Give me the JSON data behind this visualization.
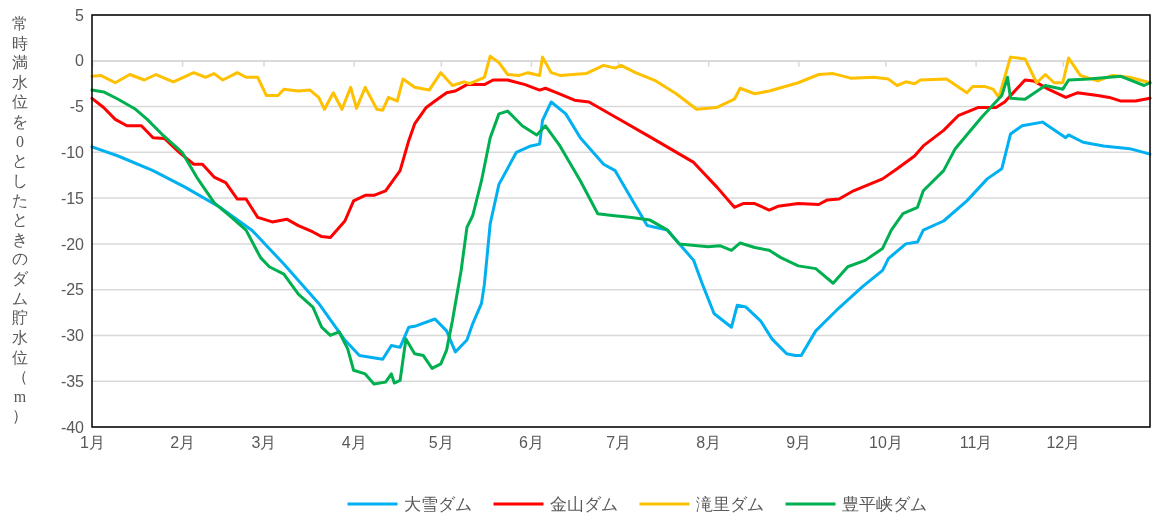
{
  "chart_data": {
    "type": "line",
    "ylabel": "常時満水位を0としたときのダム貯水位（m）",
    "xlim": [
      "--01-01",
      "--12-31"
    ],
    "xticks": [
      {
        "value": "--01-01",
        "label": "1月"
      },
      {
        "value": "--02-01",
        "label": "2月"
      },
      {
        "value": "--03-01",
        "label": "3月"
      },
      {
        "value": "--04-01",
        "label": "4月"
      },
      {
        "value": "--05-01",
        "label": "5月"
      },
      {
        "value": "--06-01",
        "label": "6月"
      },
      {
        "value": "--07-01",
        "label": "7月"
      },
      {
        "value": "--08-01",
        "label": "8月"
      },
      {
        "value": "--09-01",
        "label": "9月"
      },
      {
        "value": "--10-01",
        "label": "10月"
      },
      {
        "value": "--11-01",
        "label": "11月"
      },
      {
        "value": "--12-01",
        "label": "12月"
      }
    ],
    "ylim": [
      -40,
      5
    ],
    "yticks": [
      -40,
      -35,
      -30,
      -25,
      -20,
      -15,
      -10,
      -5,
      0,
      5
    ],
    "grid": "y",
    "legend": "bottom",
    "marker": "none",
    "line_style": "solid",
    "series": [
      {
        "name": "大雪ダム",
        "color": "#00b0f0",
        "x": [
          "--01-01",
          "--01-10",
          "--01-22",
          "--02-02",
          "--02-14",
          "--02-25",
          "--03-08",
          "--03-20",
          "--03-29",
          "--04-03",
          "--04-11",
          "--04-14",
          "--04-17",
          "--04-20",
          "--04-22",
          "--04-29",
          "--05-03",
          "--05-06",
          "--05-10",
          "--05-12",
          "--05-15",
          "--05-16",
          "--05-18",
          "--05-21",
          "--05-27",
          "--06-01",
          "--06-04",
          "--06-05",
          "--06-08",
          "--06-13",
          "--06-18",
          "--06-26",
          "--06-30",
          "--07-06",
          "--07-11",
          "--07-18",
          "--07-27",
          "--07-30",
          "--08-03",
          "--08-09",
          "--08-11",
          "--08-14",
          "--08-19",
          "--08-23",
          "--08-28",
          "--08-31",
          "--09-02",
          "--09-07",
          "--09-14",
          "--09-23",
          "--09-30",
          "--10-02",
          "--10-08",
          "--10-12",
          "--10-14",
          "--10-21",
          "--10-29",
          "--11-05",
          "--11-10",
          "--11-13",
          "--11-17",
          "--11-24",
          "--12-02",
          "--12-03",
          "--12-08",
          "--12-15",
          "--12-24",
          "--12-31"
        ],
        "values": [
          -9.4,
          -10.4,
          -12,
          -13.8,
          -16,
          -18.5,
          -22.2,
          -26.5,
          -30.5,
          -32.2,
          -32.6,
          -31.1,
          -31.3,
          -29.1,
          -29,
          -28.2,
          -29.5,
          -31.8,
          -30.5,
          -28.7,
          -26.5,
          -24.4,
          -17.8,
          -13.5,
          -10,
          -9.3,
          -9.1,
          -6.5,
          -4.5,
          -5.8,
          -8.4,
          -11.3,
          -12,
          -15.3,
          -18,
          -18.5,
          -21.8,
          -24.4,
          -27.6,
          -29.1,
          -26.7,
          -26.9,
          -28.4,
          -30.4,
          -32,
          -32.2,
          -32.2,
          -29.5,
          -27.3,
          -24.7,
          -22.9,
          -21.6,
          -20,
          -19.8,
          -18.5,
          -17.5,
          -15.3,
          -12.9,
          -11.8,
          -8,
          -7.1,
          -6.7,
          -8.4,
          -8.1,
          -8.9,
          -9.3,
          -9.6,
          -10.2
        ]
      },
      {
        "name": "金山ダム",
        "color": "#ff0000",
        "x": [
          "--01-01",
          "--01-05",
          "--01-09",
          "--01-13",
          "--01-18",
          "--01-22",
          "--01-26",
          "--01-31",
          "--02-05",
          "--02-08",
          "--02-12",
          "--02-16",
          "--02-20",
          "--02-23",
          "--02-27",
          "--03-04",
          "--03-09",
          "--03-13",
          "--03-18",
          "--03-21",
          "--03-24",
          "--03-29",
          "--04-01",
          "--04-05",
          "--04-08",
          "--04-12",
          "--04-17",
          "--04-20",
          "--04-22",
          "--04-26",
          "--04-29",
          "--05-03",
          "--05-06",
          "--05-10",
          "--05-16",
          "--05-19",
          "--05-24",
          "--05-30",
          "--06-04",
          "--06-06",
          "--06-10",
          "--06-16",
          "--06-21",
          "--07-02",
          "--07-13",
          "--07-27",
          "--08-04",
          "--08-10",
          "--08-13",
          "--08-17",
          "--08-22",
          "--08-25",
          "--09-01",
          "--09-08",
          "--09-11",
          "--09-15",
          "--09-20",
          "--09-30",
          "--10-05",
          "--10-11",
          "--10-14",
          "--10-21",
          "--10-26",
          "--11-02",
          "--11-08",
          "--11-11",
          "--11-18",
          "--11-21",
          "--11-26",
          "--12-02",
          "--12-06",
          "--12-13",
          "--12-17",
          "--12-21",
          "--12-26",
          "--12-31"
        ],
        "values": [
          -4.1,
          -5.1,
          -6.4,
          -7.1,
          -7.1,
          -8.4,
          -8.5,
          -10,
          -11.3,
          -11.3,
          -12.7,
          -13.3,
          -15.1,
          -15.1,
          -17.1,
          -17.6,
          -17.3,
          -18,
          -18.7,
          -19.2,
          -19.3,
          -17.5,
          -15.3,
          -14.7,
          -14.7,
          -14.2,
          -12,
          -8.7,
          -6.9,
          -5.1,
          -4.4,
          -3.5,
          -3.3,
          -2.6,
          -2.6,
          -2.1,
          -2.1,
          -2.6,
          -3.2,
          -3,
          -3.5,
          -4.3,
          -4.5,
          -6.5,
          -8.5,
          -11.1,
          -13.8,
          -16,
          -15.6,
          -15.6,
          -16.3,
          -15.9,
          -15.6,
          -15.7,
          -15.2,
          -15.1,
          -14.2,
          -12.9,
          -11.8,
          -10.4,
          -9.3,
          -7.6,
          -6,
          -5.1,
          -5.1,
          -4.5,
          -2.1,
          -2.2,
          -3.1,
          -4,
          -3.5,
          -3.8,
          -4,
          -4.4,
          -4.4,
          -4.1
        ]
      },
      {
        "name": "滝里ダム",
        "color": "#ffc000",
        "x": [
          "--01-01",
          "--01-04",
          "--01-09",
          "--01-14",
          "--01-19",
          "--01-23",
          "--01-29",
          "--02-05",
          "--02-09",
          "--02-12",
          "--02-15",
          "--02-20",
          "--02-23",
          "--02-27",
          "--03-02",
          "--03-06",
          "--03-08",
          "--03-13",
          "--03-17",
          "--03-20",
          "--03-22",
          "--03-25",
          "--03-28",
          "--03-31",
          "--04-02",
          "--04-05",
          "--04-09",
          "--04-11",
          "--04-13",
          "--04-16",
          "--04-18",
          "--04-22",
          "--04-27",
          "--05-01",
          "--05-05",
          "--05-09",
          "--05-11",
          "--05-16",
          "--05-18",
          "--05-21",
          "--05-24",
          "--05-28",
          "--05-31",
          "--06-04",
          "--06-05",
          "--06-08",
          "--06-11",
          "--06-20",
          "--06-26",
          "--06-30",
          "--07-02",
          "--07-07",
          "--07-14",
          "--07-21",
          "--07-28",
          "--08-04",
          "--08-10",
          "--08-12",
          "--08-17",
          "--08-22",
          "--09-01",
          "--09-08",
          "--09-13",
          "--09-19",
          "--09-27",
          "--10-02",
          "--10-05",
          "--10-08",
          "--10-11",
          "--10-13",
          "--10-22",
          "--10-29",
          "--10-31",
          "--11-04",
          "--11-07",
          "--11-09",
          "--11-13",
          "--11-18",
          "--11-22",
          "--11-25",
          "--11-28",
          "--12-01",
          "--12-03",
          "--12-07",
          "--12-13",
          "--12-18",
          "--12-24",
          "--12-31"
        ],
        "values": [
          -1.7,
          -1.6,
          -2.4,
          -1.5,
          -2.1,
          -1.5,
          -2.3,
          -1.3,
          -1.8,
          -1.4,
          -2.1,
          -1.3,
          -1.8,
          -1.8,
          -3.8,
          -3.8,
          -3.1,
          -3.3,
          -3.2,
          -4,
          -5.3,
          -3.5,
          -5.3,
          -2.9,
          -5.2,
          -2.9,
          -5.3,
          -5.4,
          -4,
          -4.4,
          -2,
          -2.9,
          -3.2,
          -1.3,
          -2.7,
          -2.3,
          -2.5,
          -1.8,
          0.5,
          -0.2,
          -1.5,
          -1.6,
          -1.3,
          -1.6,
          0.4,
          -1.3,
          -1.6,
          -1.4,
          -0.5,
          -0.8,
          -0.5,
          -1.3,
          -2.2,
          -3.6,
          -5.3,
          -5.1,
          -4.2,
          -3,
          -3.6,
          -3.3,
          -2.4,
          -1.5,
          -1.4,
          -1.9,
          -1.8,
          -2,
          -2.7,
          -2.3,
          -2.5,
          -2.1,
          -2,
          -3.5,
          -2.8,
          -2.8,
          -3.1,
          -4,
          0.4,
          0.2,
          -2.4,
          -1.5,
          -2.4,
          -2.4,
          0.3,
          -1.6,
          -2.2,
          -1.6,
          -1.8,
          -2.4
        ]
      },
      {
        "name": "豊平峡ダム",
        "color": "#00b050",
        "x": [
          "--01-01",
          "--01-05",
          "--01-10",
          "--01-16",
          "--01-20",
          "--01-25",
          "--02-01",
          "--02-06",
          "--02-12",
          "--02-18",
          "--02-23",
          "--02-28",
          "--03-03",
          "--03-08",
          "--03-13",
          "--03-18",
          "--03-21",
          "--03-24",
          "--03-27",
          "--03-30",
          "--04-01",
          "--04-05",
          "--04-08",
          "--04-12",
          "--04-14",
          "--04-15",
          "--04-17",
          "--04-19",
          "--04-22",
          "--04-25",
          "--04-28",
          "--05-01",
          "--05-03",
          "--05-05",
          "--05-08",
          "--05-10",
          "--05-12",
          "--05-15",
          "--05-18",
          "--05-21",
          "--05-24",
          "--05-29",
          "--06-03",
          "--06-06",
          "--06-11",
          "--06-18",
          "--06-24",
          "--06-29",
          "--07-05",
          "--07-12",
          "--07-18",
          "--07-22",
          "--08-01",
          "--08-05",
          "--08-09",
          "--08-12",
          "--08-17",
          "--08-22",
          "--08-26",
          "--09-01",
          "--09-07",
          "--09-13",
          "--09-18",
          "--09-24",
          "--09-30",
          "--10-03",
          "--10-07",
          "--10-12",
          "--10-14",
          "--10-21",
          "--10-25",
          "--11-03",
          "--11-10",
          "--11-12",
          "--11-13",
          "--11-18",
          "--11-25",
          "--12-01",
          "--12-03",
          "--12-10",
          "--12-21",
          "--12-29",
          "--12-31"
        ],
        "values": [
          -3.2,
          -3.4,
          -4.2,
          -5.3,
          -6.4,
          -8,
          -10,
          -12.7,
          -15.5,
          -17.1,
          -18.5,
          -21.5,
          -22.5,
          -23.3,
          -25.5,
          -26.9,
          -29.1,
          -30,
          -29.6,
          -31.5,
          -33.8,
          -34.2,
          -35.3,
          -35.1,
          -34.2,
          -35.2,
          -34.9,
          -30.4,
          -32,
          -32.2,
          -33.6,
          -33.1,
          -31.6,
          -28.4,
          -22.9,
          -18.2,
          -16.9,
          -13.1,
          -8.4,
          -5.8,
          -5.5,
          -7.1,
          -8.1,
          -7.1,
          -9.3,
          -13.1,
          -16.7,
          -16.9,
          -17.1,
          -17.4,
          -18.5,
          -20,
          -20.3,
          -20.2,
          -20.7,
          -19.9,
          -20.4,
          -20.7,
          -21.5,
          -22.4,
          -22.7,
          -24.3,
          -22.5,
          -21.8,
          -20.5,
          -18.5,
          -16.7,
          -16,
          -14.2,
          -12,
          -9.6,
          -6.2,
          -3.8,
          -1.8,
          -4.1,
          -4.2,
          -2.7,
          -3.1,
          -2.1,
          -2,
          -1.7,
          -2.7,
          -2.4
        ]
      }
    ]
  }
}
